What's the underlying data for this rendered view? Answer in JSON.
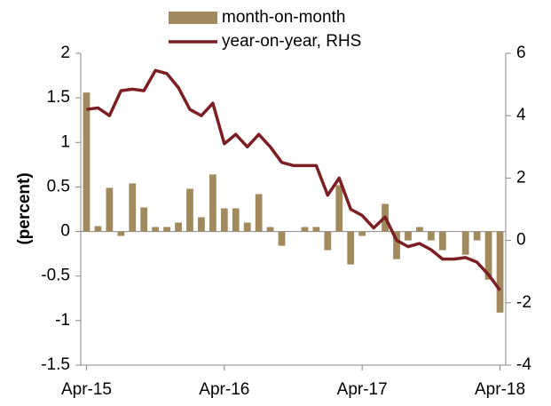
{
  "chart_data": {
    "type": "bar",
    "y_label": "(percent)",
    "categories": [
      "Apr-15",
      null,
      null,
      null,
      null,
      null,
      null,
      null,
      null,
      null,
      null,
      null,
      "Apr-16",
      null,
      null,
      null,
      null,
      null,
      null,
      null,
      null,
      null,
      null,
      null,
      "Apr-17",
      null,
      null,
      null,
      null,
      null,
      null,
      null,
      null,
      null,
      null,
      null,
      "Apr-18"
    ],
    "series": [
      {
        "name": "month-on-month",
        "color": "#a08a5e",
        "type": "bar",
        "values": [
          1.56,
          0.06,
          0.49,
          -0.05,
          0.54,
          0.27,
          0.05,
          0.05,
          0.1,
          0.48,
          0.16,
          0.64,
          0.26,
          0.26,
          0.1,
          0.42,
          0.05,
          -0.16,
          0.0,
          0.05,
          0.05,
          -0.21,
          0.52,
          -0.37,
          -0.05,
          0.0,
          0.31,
          -0.31,
          -0.1,
          0.05,
          -0.1,
          -0.21,
          0.0,
          -0.26,
          -0.1,
          -0.54,
          -0.91
        ]
      },
      {
        "name": "year-on-year, RHS",
        "color": "#7b1f24",
        "type": "line",
        "axis": "y2",
        "values": [
          4.2,
          4.25,
          4.0,
          4.8,
          4.85,
          4.8,
          5.45,
          5.35,
          4.9,
          4.2,
          4.0,
          4.4,
          3.1,
          3.4,
          3.0,
          3.4,
          3.0,
          2.5,
          2.4,
          2.4,
          2.4,
          1.45,
          2.0,
          1.0,
          0.8,
          0.4,
          0.75,
          0.0,
          -0.2,
          -0.1,
          -0.3,
          -0.6,
          -0.6,
          -0.55,
          -0.7,
          -1.1,
          -1.6
        ]
      }
    ],
    "ylim": [
      -1.5,
      2
    ],
    "yticks": [
      -1.5,
      -1,
      -0.5,
      0,
      0.5,
      1,
      1.5,
      2
    ],
    "y2lim": [
      -4,
      6
    ],
    "y2ticks": [
      -4,
      -2,
      0,
      2,
      4,
      6
    ]
  }
}
